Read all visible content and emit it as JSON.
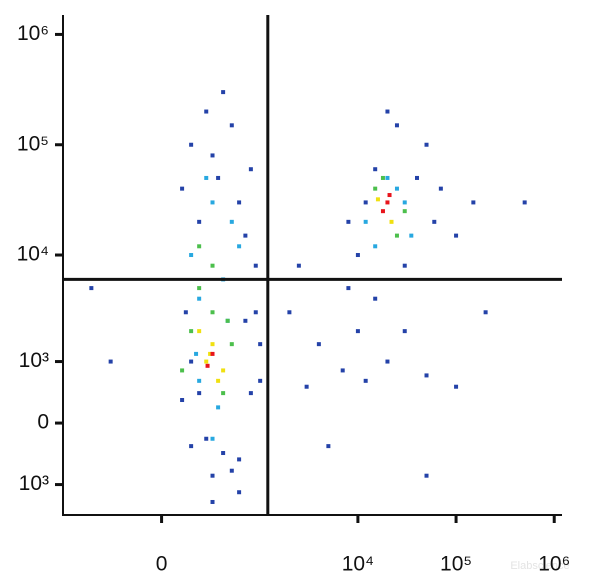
{
  "chart_data": {
    "type": "scatter",
    "xscale": "asinh",
    "yscale": "asinh",
    "xlim": [
      -1000,
      1200000
    ],
    "ylim": [
      -2000,
      1500000
    ],
    "xticks": [
      0,
      {
        "value": 10000,
        "label": "10⁴"
      },
      {
        "value": 100000,
        "label": "10⁵"
      },
      {
        "value": 1000000,
        "label": "10⁶"
      }
    ],
    "yticks": [
      {
        "value": 1000000,
        "label": "10⁶"
      },
      {
        "value": 100000,
        "label": "10⁵"
      },
      {
        "value": 10000,
        "label": "10⁴"
      },
      {
        "value": 1000,
        "label": "10³"
      },
      0,
      {
        "value": -1000,
        "label": "10³"
      }
    ],
    "gate": {
      "x": 1200,
      "y": 6000
    },
    "watermark": "Elabscience",
    "series": [
      {
        "color": "#2442a8",
        "x": [
          100,
          150,
          800,
          1000,
          600,
          120,
          900,
          300,
          500,
          200,
          700,
          150,
          400,
          1000,
          250,
          150,
          250,
          500,
          800,
          100,
          600,
          300,
          400,
          200,
          700,
          900,
          350,
          10000,
          15000,
          40000,
          60000,
          100000,
          12000,
          30000,
          50000,
          8000,
          20000,
          25000,
          150000,
          70000,
          2000,
          4000,
          7000,
          10000,
          15000,
          3000,
          20000,
          30000,
          5000,
          12000,
          50000,
          2500,
          8000,
          -500,
          -300,
          100000,
          500000,
          200000,
          300,
          600,
          50000
        ],
        "y": [
          300,
          -300,
          400,
          1500,
          -500,
          3000,
          3000,
          -800,
          -700,
          400,
          2500,
          1000,
          -400,
          600,
          -200,
          100000,
          200000,
          150000,
          60000,
          40000,
          30000,
          80000,
          300000,
          20000,
          15000,
          8000,
          50000,
          10000,
          60000,
          50000,
          20000,
          15000,
          30000,
          8000,
          100000,
          20000,
          200000,
          150000,
          30000,
          40000,
          3000,
          1500,
          800,
          2000,
          4000,
          500,
          1000,
          2000,
          -300,
          600,
          700,
          8000,
          5000,
          5000,
          1000,
          500,
          30000,
          3000,
          -1500,
          -1200,
          -800
        ]
      },
      {
        "color": "#28a8e0",
        "x": [
          200,
          400,
          150,
          500,
          300,
          250,
          600,
          180,
          350,
          450,
          300,
          200,
          12000,
          25000,
          35000,
          15000,
          30000,
          20000
        ],
        "y": [
          4000,
          6000,
          10000,
          20000,
          30000,
          50000,
          12000,
          1200,
          200,
          2500,
          -200,
          600,
          20000,
          40000,
          15000,
          12000,
          30000,
          50000
        ]
      },
      {
        "color": "#4cbf4c",
        "x": [
          150,
          500,
          300,
          200,
          300,
          400,
          200,
          100,
          450,
          30000,
          15000,
          25000,
          18000
        ],
        "y": [
          2000,
          1500,
          3000,
          5000,
          8000,
          400,
          12000,
          800,
          2500,
          25000,
          40000,
          15000,
          50000
        ]
      },
      {
        "color": "#f0e010",
        "x": [
          300,
          250,
          400,
          200,
          350,
          280,
          22000,
          16000
        ],
        "y": [
          1500,
          1000,
          800,
          2000,
          600,
          1200,
          20000,
          32000
        ]
      },
      {
        "color": "#e8141c",
        "x": [
          300,
          260,
          20000,
          18000,
          21000
        ],
        "y": [
          1200,
          900,
          30000,
          25000,
          35000
        ]
      }
    ]
  }
}
